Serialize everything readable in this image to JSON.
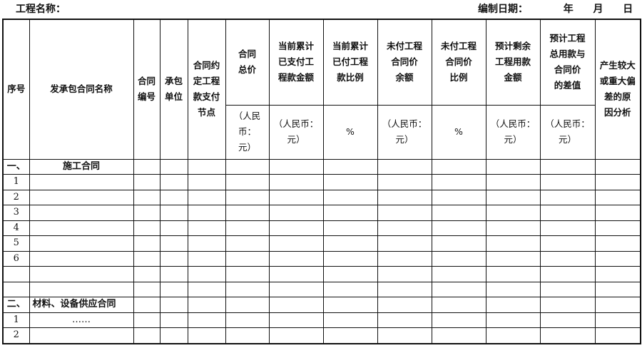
{
  "header": {
    "project_label": "工程名称：",
    "date_label": "编制日期：",
    "year": "年",
    "month": "月",
    "day": "日"
  },
  "columns": [
    {
      "title": "序号"
    },
    {
      "title": "发承包合同名称"
    },
    {
      "title": "合同\n编号"
    },
    {
      "title": "承包\n单位"
    },
    {
      "title": "合同约\n定工程\n款支付\n节点"
    },
    {
      "title": "合同\n总价",
      "unit": "（人民币：\n元）"
    },
    {
      "title": "当前累计\n已支付工\n程款金额",
      "unit": "（人民币：\n元）"
    },
    {
      "title": "当前累计\n已付工程\n款比例",
      "unit": "%"
    },
    {
      "title": "未付工程\n合同价\n余额",
      "unit": "（人民币：\n元）"
    },
    {
      "title": "未付工程\n合同价\n比例",
      "unit": "%"
    },
    {
      "title": "预计剩余\n工程用款\n金额",
      "unit": "（人民币：\n元）"
    },
    {
      "title": "预计工程\n总用款与\n合同价\n的差值",
      "unit": "（人民币：\n元）"
    },
    {
      "title": "产生较大\n或重大偏\n差的原\n因分析"
    }
  ],
  "rows": [
    {
      "no": "一、",
      "name": "施工合同"
    },
    {
      "no": "1",
      "name": ""
    },
    {
      "no": "2",
      "name": ""
    },
    {
      "no": "3",
      "name": ""
    },
    {
      "no": "4",
      "name": ""
    },
    {
      "no": "5",
      "name": ""
    },
    {
      "no": "6",
      "name": ""
    },
    {
      "no": "",
      "name": ""
    },
    {
      "no": "",
      "name": ""
    },
    {
      "no": "二、",
      "name": "材料、设备供应合同"
    },
    {
      "no": "1",
      "name": "……"
    },
    {
      "no": "2",
      "name": ""
    }
  ]
}
